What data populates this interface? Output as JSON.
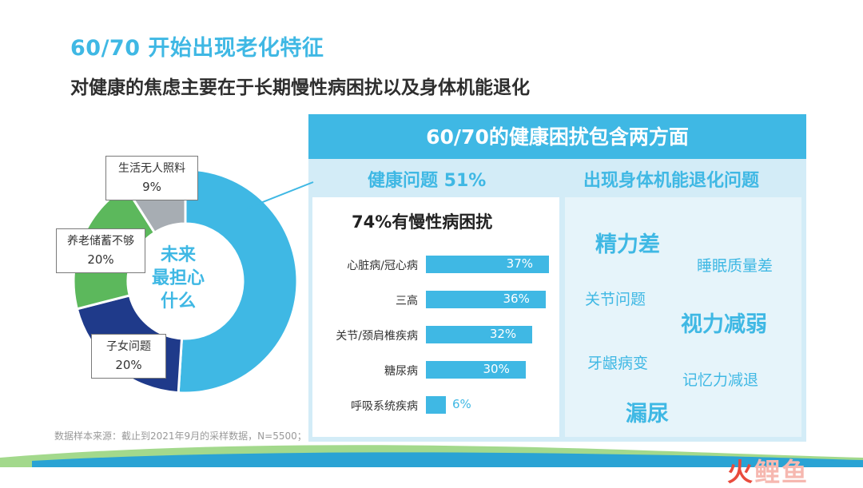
{
  "header": {
    "title": "60/70 开始出现老化特征",
    "subtitle": "对健康的焦虑主要在于长期慢性病困扰以及身体机能退化"
  },
  "donut": {
    "center_lines": [
      "未来",
      "最担心",
      "什么"
    ],
    "callouts": {
      "no_care": {
        "label": "生活无人照料",
        "pct": "9%"
      },
      "savings": {
        "label": "养老储蓄不够",
        "pct": "20%"
      },
      "children": {
        "label": "子女问题",
        "pct": "20%"
      }
    }
  },
  "panel": {
    "heading": "60/70的健康困扰包含两方面",
    "left_heading": "健康问题  51%",
    "right_heading": "出现身体机能退化问题",
    "bar_title": "74%有慢性病困扰",
    "keywords": {
      "k1": "精力差",
      "k2": "睡眠质量差",
      "k3": "关节问题",
      "k4": "视力减弱",
      "k5": "牙龈病变",
      "k6": "记忆力减退",
      "k7": "漏尿"
    }
  },
  "footnote": "数据样本来源：截止到2021年9月的采样数据，N=5500；",
  "logo": {
    "part1": "火",
    "part2": "鲤鱼"
  },
  "colors": {
    "light_blue": "#3fb8e4",
    "navy": "#1f3a8a",
    "green": "#5cb85c",
    "gray": "#a7adb3",
    "panel_bg": "#d3ecf7",
    "bar": "#3fb8e4"
  },
  "chart_data": [
    {
      "type": "pie",
      "title": "",
      "categories": [
        "健康问题",
        "子女问题",
        "养老储蓄不够",
        "生活无人照料"
      ],
      "values": [
        51,
        20,
        20,
        9
      ],
      "colors": [
        "#3fb8e4",
        "#1f3a8a",
        "#5cb85c",
        "#a7adb3"
      ],
      "donut": true
    },
    {
      "type": "bar",
      "orientation": "horizontal",
      "title": "74%有慢性病困扰",
      "categories": [
        "心脏病/冠心病",
        "三高",
        "关节/颈肩椎疾病",
        "糖尿病",
        "呼吸系统疾病"
      ],
      "values": [
        37,
        36,
        32,
        30,
        6
      ],
      "value_labels": [
        "37%",
        "36%",
        "32%",
        "30%",
        "6%"
      ],
      "xlim": [
        0,
        37
      ]
    }
  ]
}
